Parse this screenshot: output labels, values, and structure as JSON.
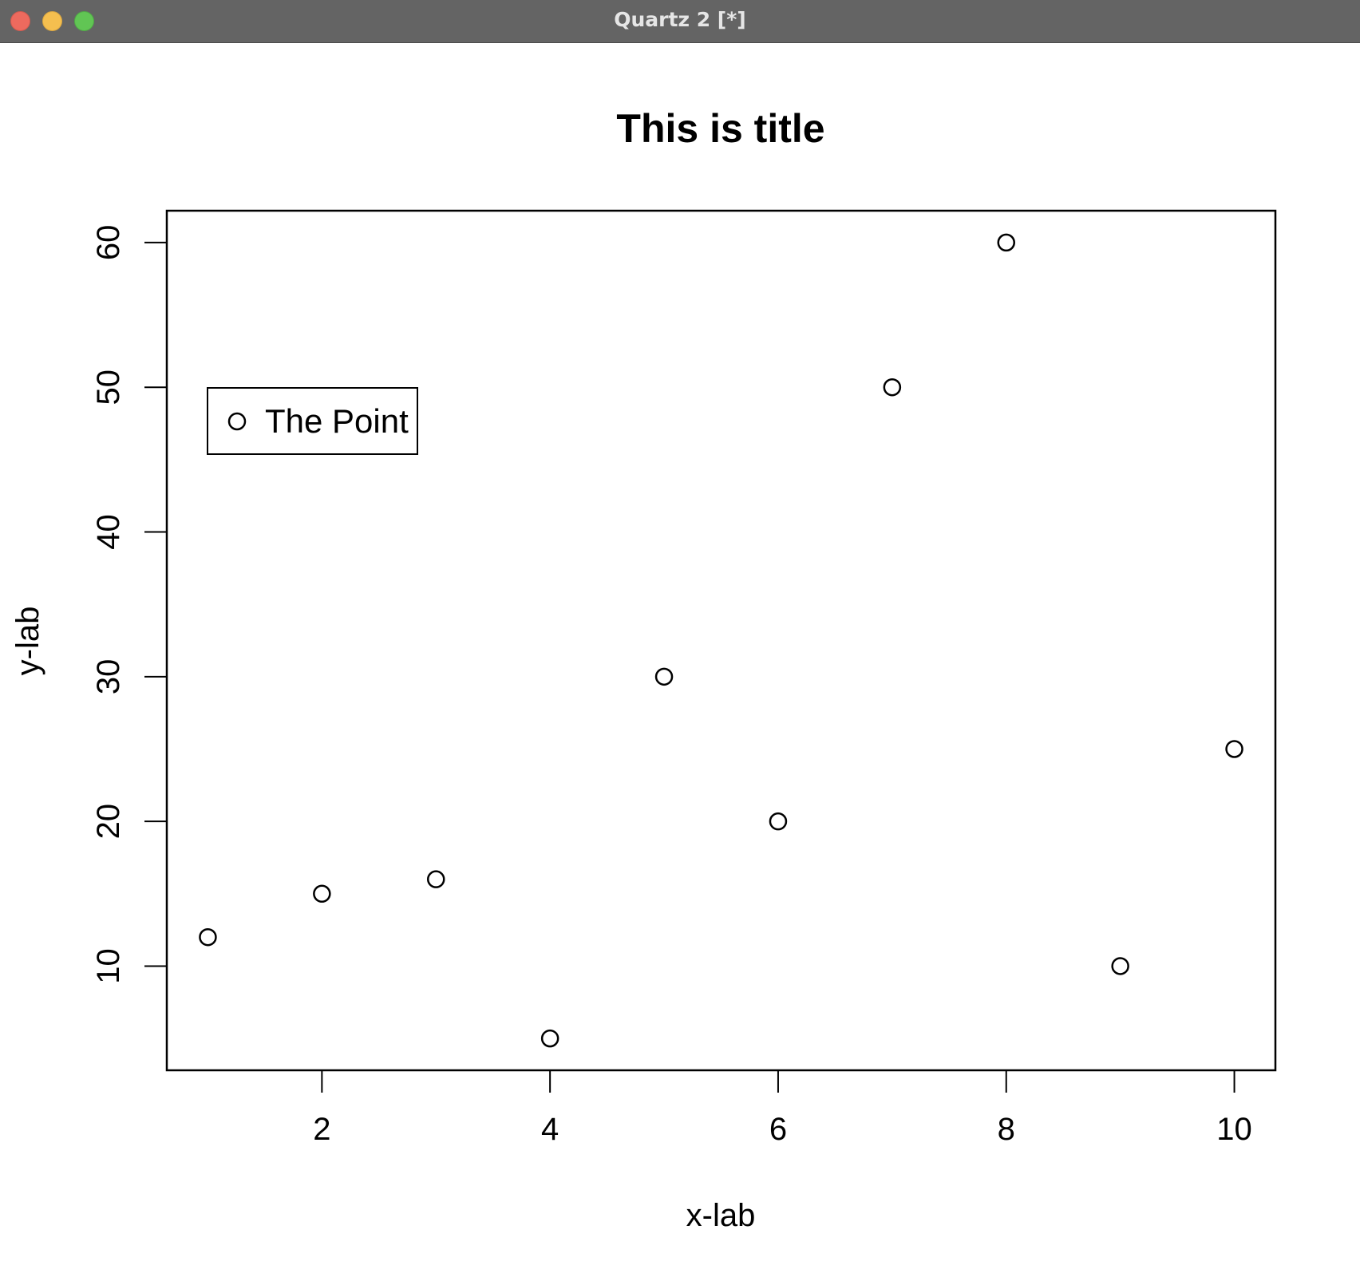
{
  "window": {
    "title": "Quartz 2 [*]",
    "colors": {
      "titlebar": "#646464",
      "close": "#ed6a5e",
      "minimize": "#f5bf4f",
      "maximize": "#61c554"
    }
  },
  "chart_data": {
    "type": "scatter",
    "title": "This is title",
    "xlabel": "x-lab",
    "ylabel": "y-lab",
    "x": [
      1,
      2,
      3,
      4,
      5,
      6,
      7,
      8,
      9,
      10
    ],
    "y": [
      12,
      15,
      16,
      5,
      30,
      20,
      50,
      60,
      10,
      25
    ],
    "xlim": [
      0.64,
      10.36
    ],
    "ylim": [
      2.8,
      62.2
    ],
    "xticks": [
      2,
      4,
      6,
      8,
      10
    ],
    "yticks": [
      10,
      20,
      30,
      40,
      50,
      60
    ],
    "xtick_labels": [
      "2",
      "4",
      "6",
      "8",
      "10"
    ],
    "ytick_labels": [
      "10",
      "20",
      "30",
      "40",
      "50",
      "60"
    ],
    "marker": "open-circle",
    "grid": false,
    "legend": {
      "position": "top-left",
      "entries": [
        "The Point"
      ]
    }
  }
}
